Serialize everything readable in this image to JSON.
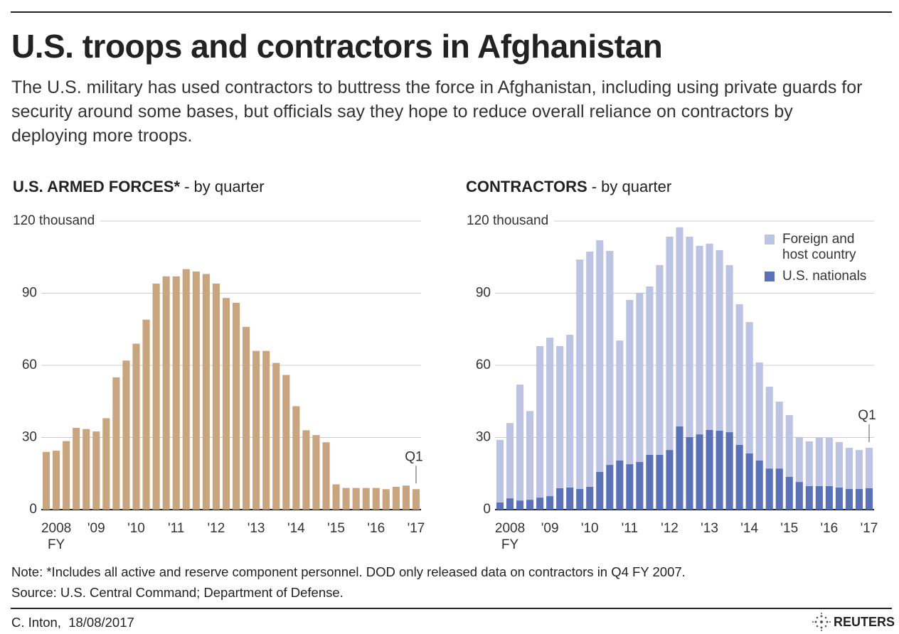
{
  "title": "U.S. troops and contractors in Afghanistan",
  "description": "The U.S. military has used contractors to buttress the force in Afghanistan, including using private guards for security around some bases, but officials say they hope to reduce overall reliance on contractors by deploying more troops.",
  "note": "Note: *Includes all active and reserve component personnel. DOD only released data on contractors in Q4 FY 2007.",
  "source": "Source: U.S. Central Command; Department of Defense.",
  "credit": "C. Inton,  18/08/2017",
  "logo": "REUTERS",
  "chart_data": [
    {
      "type": "bar",
      "title": "U.S. ARMED FORCES*",
      "subtitle": "- by quarter",
      "categories": [
        null,
        "2008",
        null,
        null,
        null,
        "'09",
        null,
        null,
        null,
        "'10",
        null,
        null,
        null,
        "'11",
        null,
        null,
        null,
        "'12",
        null,
        null,
        null,
        "'13",
        null,
        null,
        null,
        "'14",
        null,
        null,
        null,
        "'15",
        null,
        null,
        null,
        "'16",
        null,
        null,
        null,
        "'17"
      ],
      "x_note": "FY",
      "last_note": "Q1",
      "values": [
        24,
        24.5,
        28.5,
        34,
        33.5,
        32.5,
        38,
        55,
        62,
        69,
        79,
        94,
        97,
        97,
        100,
        99,
        98,
        94,
        88,
        86,
        76,
        66,
        66,
        61,
        56,
        43,
        33,
        31,
        28,
        10.5,
        9,
        9,
        9,
        9,
        8.5,
        9.5,
        10,
        8.5
      ],
      "color": "#c9a57f",
      "ylim": [
        0,
        120
      ],
      "yticks": [
        0,
        30,
        60,
        90,
        {
          "value": 120,
          "label": "120  thousand"
        }
      ],
      "grid": true
    },
    {
      "type": "stacked_bar",
      "title": "CONTRACTORS",
      "subtitle": "- by quarter",
      "categories": [
        null,
        "2008",
        null,
        null,
        null,
        "'09",
        null,
        null,
        null,
        "'10",
        null,
        null,
        null,
        "'11",
        null,
        null,
        null,
        "'12",
        null,
        null,
        null,
        "'13",
        null,
        null,
        null,
        "'14",
        null,
        null,
        null,
        "'15",
        null,
        null,
        null,
        "'16",
        null,
        null,
        null,
        "'17"
      ],
      "x_note": "FY",
      "last_note": "Q1",
      "series": [
        {
          "name": "U.S. nationals",
          "color": "#5b71b7",
          "values": [
            3,
            4.7,
            3.8,
            4.1,
            5,
            5.6,
            8.9,
            9.2,
            8.6,
            9.5,
            15.7,
            18.6,
            20.4,
            18.9,
            19.8,
            22.8,
            22.8,
            24.8,
            34.6,
            30.2,
            31.3,
            33.1,
            32.8,
            32.2,
            26.9,
            23.4,
            20.4,
            17.1,
            17.1,
            13.6,
            11.5,
            9.8,
            9.8,
            9.8,
            9.2,
            8.6,
            8.6,
            8.9
          ]
        },
        {
          "name": "Foreign and host country",
          "color": "#bcc3e3",
          "values": [
            26,
            31.3,
            48.2,
            36.9,
            63,
            65.9,
            59.1,
            63.5,
            95.4,
            97.8,
            96.3,
            89,
            49.9,
            68.3,
            70.4,
            70,
            78.9,
            88.7,
            82.8,
            83.3,
            78.4,
            77.5,
            75.1,
            69.5,
            58.5,
            54.6,
            40.8,
            34,
            27.8,
            25.7,
            18.7,
            18.6,
            20.1,
            20.1,
            18.9,
            17.1,
            16.2,
            16.8
          ]
        }
      ],
      "ylim": [
        0,
        120
      ],
      "yticks": [
        0,
        30,
        60,
        90,
        {
          "value": 120,
          "label": "120  thousand"
        }
      ],
      "grid": true
    }
  ]
}
